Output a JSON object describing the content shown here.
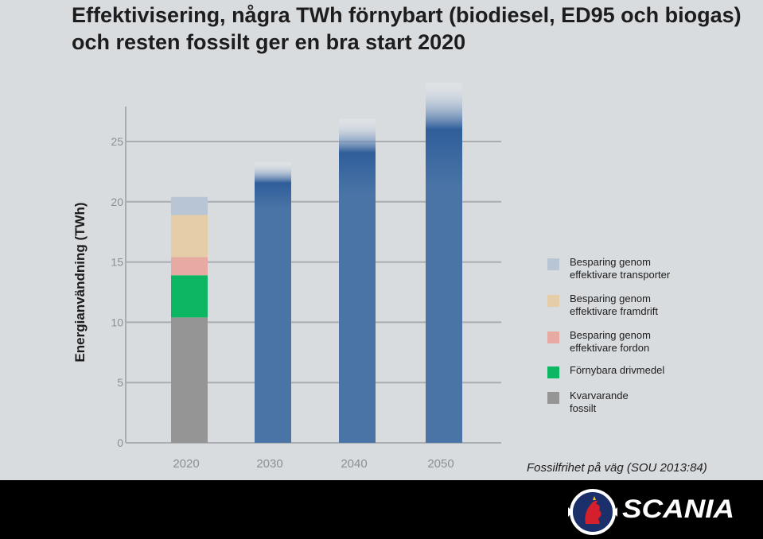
{
  "title": "Effektivisering, några TWh förnybart (biodiesel, ED95 och biogas) och resten fossilt ger en bra start 2020",
  "source": "Fossilfrihet på väg (SOU 2013:84)",
  "brand": {
    "name": "SCANIA",
    "logo": "scania-griffin-logo"
  },
  "colors": {
    "background": "#d9dcdf",
    "bar_blue": "#4a74a6",
    "fossil": "#959595",
    "renewable": "#0cb662",
    "vehicles": "#e7aaa3",
    "propulsion": "#e5cda7",
    "transport": "#b7c5d4",
    "axis": "#a9adb1"
  },
  "chart_data": {
    "type": "bar",
    "stacked": true,
    "title": "Effektivisering, några TWh förnybart (biodiesel, ED95 och biogas) och resten fossilt ger en bra start 2020",
    "xlabel": "",
    "ylabel": "Energianvändning (TWh)",
    "ylim": [
      0,
      25
    ],
    "yticks": [
      0,
      5,
      10,
      15,
      20,
      25
    ],
    "grid": true,
    "legend_position": "right",
    "categories": [
      "2020",
      "2030",
      "2040",
      "2050"
    ],
    "series": [
      {
        "name": "Kvarvarande fossilt",
        "color": "#959595",
        "values": [
          10.4,
          0,
          0,
          0
        ]
      },
      {
        "name": "Förnybara drivmedel",
        "color": "#0cb662",
        "values": [
          3.5,
          0,
          0,
          0
        ]
      },
      {
        "name": "Besparing genom effektivare fordon",
        "color": "#e7aaa3",
        "values": [
          1.5,
          0,
          0,
          0
        ]
      },
      {
        "name": "Besparing genom effektivare framdrift",
        "color": "#e5cda7",
        "values": [
          3.5,
          0,
          0,
          0
        ]
      },
      {
        "name": "Besparing genom effektivare transporter",
        "color": "#b7c5d4",
        "values": [
          1.5,
          0,
          0,
          0
        ]
      }
    ],
    "total_bars": {
      "color": "#4a74a6",
      "values": [
        0,
        23.3,
        26.9,
        29.9
      ],
      "faded_from": [
        0,
        19.5,
        20.7,
        21.3
      ]
    },
    "legend": [
      {
        "label": "Besparing genom\neffektivare transporter",
        "color": "#b7c5d4"
      },
      {
        "label": "Besparing genom\neffektivare framdrift",
        "color": "#e5cda7"
      },
      {
        "label": "Besparing genom\neffektivare fordon",
        "color": "#e7aaa3"
      },
      {
        "label": "Förnybara drivmedel",
        "color": "#0cb662"
      },
      {
        "label": "Kvarvarande\nfossilt",
        "color": "#959595"
      }
    ]
  }
}
